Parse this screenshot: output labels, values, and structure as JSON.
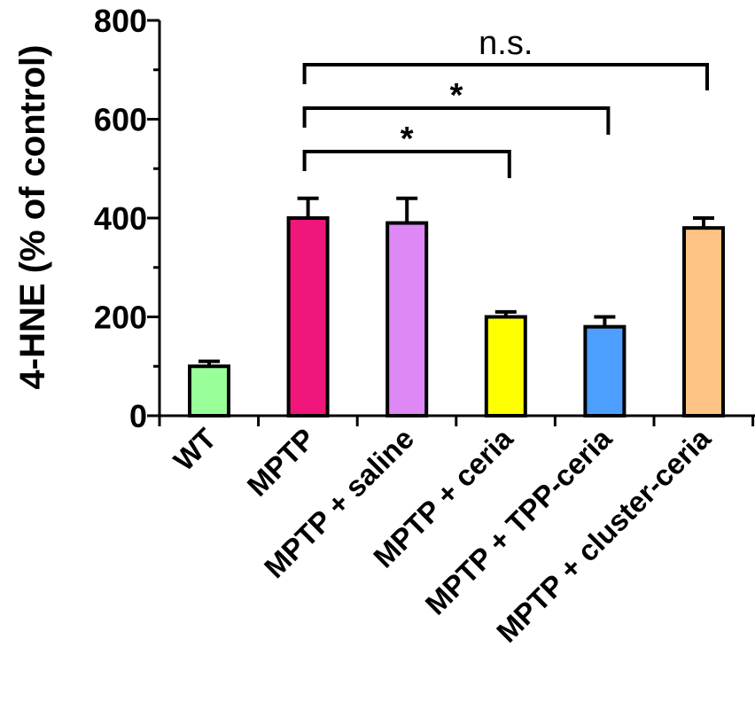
{
  "chart_data": {
    "type": "bar",
    "title": "",
    "ylabel": "4-HNE (% of control)",
    "xlabel": "",
    "ylim": [
      0,
      800
    ],
    "yticks": [
      0,
      200,
      400,
      600,
      800
    ],
    "ytick_labels": [
      "0",
      "200",
      "400",
      "600",
      "800"
    ],
    "grid": false,
    "legend": "none",
    "categories": [
      "WT",
      "MPTP",
      "MPTP + saline",
      "MPTP + ceria",
      "MPTP + TPP-ceria",
      "MPTP + cluster-ceria"
    ],
    "values": [
      100,
      400,
      390,
      200,
      180,
      380
    ],
    "errors": [
      10,
      40,
      50,
      10,
      20,
      20
    ],
    "colors": [
      "#99ff99",
      "#f0167c",
      "#dd88f5",
      "#ffff00",
      "#4d9fff",
      "#ffc285"
    ],
    "annotations": [
      {
        "from": "MPTP",
        "to": "MPTP + ceria",
        "label": "*"
      },
      {
        "from": "MPTP",
        "to": "MPTP + TPP-ceria",
        "label": "*"
      },
      {
        "from": "MPTP",
        "to": "MPTP + cluster-ceria",
        "label": "n.s."
      }
    ]
  }
}
